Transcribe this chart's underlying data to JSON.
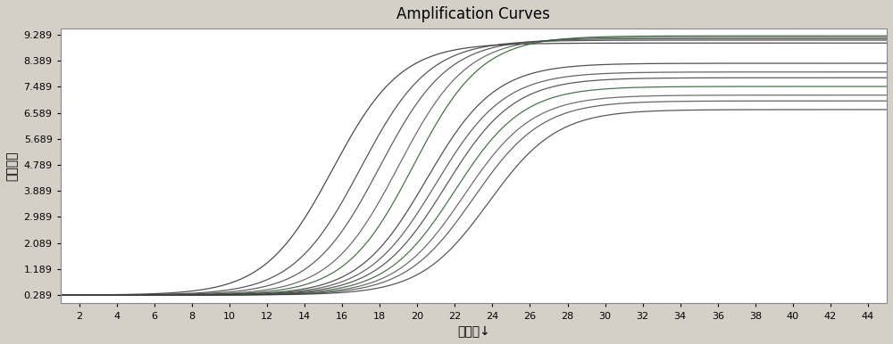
{
  "title": "Amplification Curves",
  "xlabel": "循环数↓",
  "ylabel": "荧光强度",
  "x_ticks": [
    2,
    4,
    6,
    8,
    10,
    12,
    14,
    16,
    18,
    20,
    22,
    24,
    26,
    28,
    30,
    32,
    34,
    36,
    38,
    40,
    42,
    44
  ],
  "y_ticks": [
    0.289,
    1.189,
    2.089,
    2.989,
    3.889,
    4.789,
    5.689,
    6.589,
    7.489,
    8.389,
    9.289
  ],
  "y_min": 0.0,
  "y_max": 9.5,
  "x_min": 1,
  "x_max": 45,
  "background_color": "#d4d0c8",
  "plot_bg_color": "#ffffff",
  "curves": [
    {
      "midpoint": 15.5,
      "L": 9.0,
      "k": 0.55,
      "color": "#2d2d2d"
    },
    {
      "midpoint": 17.0,
      "L": 9.1,
      "k": 0.55,
      "color": "#3a3a3a"
    },
    {
      "midpoint": 18.0,
      "L": 9.15,
      "k": 0.55,
      "color": "#444444"
    },
    {
      "midpoint": 19.0,
      "L": 9.2,
      "k": 0.55,
      "color": "#555555"
    },
    {
      "midpoint": 19.8,
      "L": 9.25,
      "k": 0.55,
      "color": "#2a5a2a"
    },
    {
      "midpoint": 20.5,
      "L": 8.3,
      "k": 0.55,
      "color": "#333333"
    },
    {
      "midpoint": 21.0,
      "L": 8.0,
      "k": 0.55,
      "color": "#4a4a4a"
    },
    {
      "midpoint": 21.5,
      "L": 7.8,
      "k": 0.55,
      "color": "#3d3d3d"
    },
    {
      "midpoint": 22.0,
      "L": 7.5,
      "k": 0.55,
      "color": "#2d5a2d"
    },
    {
      "midpoint": 22.5,
      "L": 7.2,
      "k": 0.55,
      "color": "#555555"
    },
    {
      "midpoint": 23.0,
      "L": 7.0,
      "k": 0.55,
      "color": "#4a4a4a"
    },
    {
      "midpoint": 23.8,
      "L": 6.7,
      "k": 0.55,
      "color": "#3a3a3a"
    }
  ],
  "baseline": 0.289,
  "title_fontsize": 12,
  "label_fontsize": 10,
  "tick_fontsize": 8
}
